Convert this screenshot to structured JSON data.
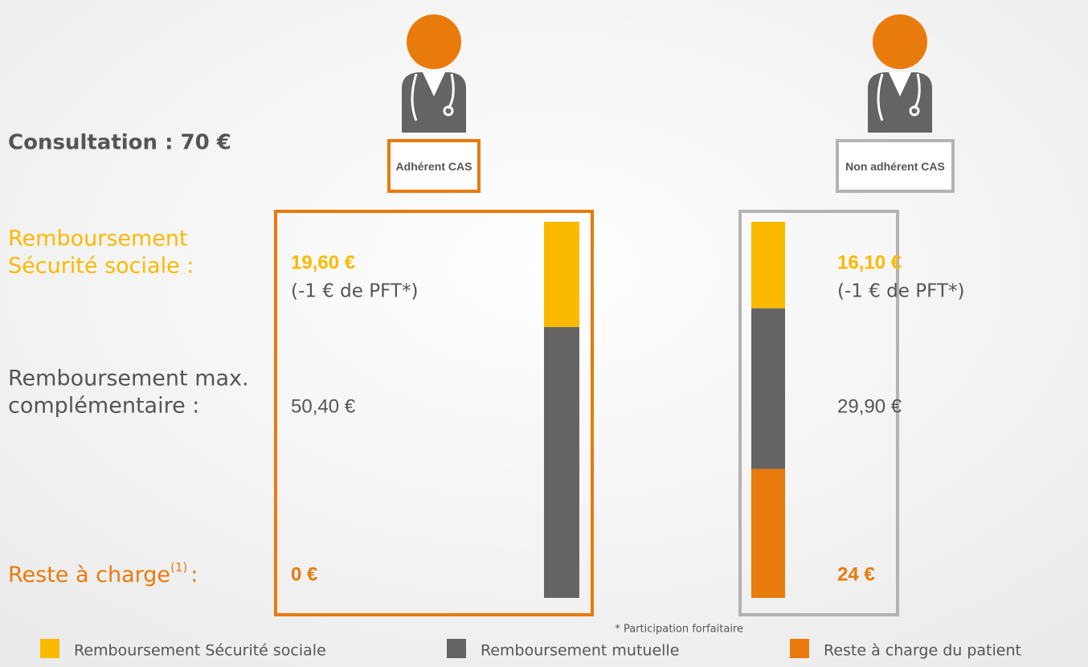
{
  "title": "Consultation : 70 €",
  "row_labels": {
    "ss": [
      "Remboursement",
      "Sécurité sociale :"
    ],
    "complementary": [
      "Remboursement max.",
      "complémentaire :"
    ],
    "remaining": {
      "text": "Reste à charge",
      "sup": "(1)",
      "colon": ":"
    }
  },
  "footnote": "* Participation forfaitaire",
  "chart_data": {
    "type": "stacked-bar",
    "categories": [
      "Adhérent CAS",
      "Non adhérent CAS"
    ],
    "category_colors": [
      "#e97a0c",
      "#b3b3b3"
    ],
    "notes": [
      "(-1 € de PFT*)",
      "(-1 € de PFT*)"
    ],
    "series": [
      {
        "name": "Remboursement Sécurité sociale",
        "color": "#fbb900",
        "values": [
          19.6,
          16.1
        ],
        "value_labels": [
          "19,60 €",
          "16,10 €"
        ]
      },
      {
        "name": "Remboursement mutuelle",
        "color": "#646464",
        "values": [
          50.4,
          29.9
        ],
        "value_labels": [
          "50,40 €",
          "29,90 €"
        ]
      },
      {
        "name": "Reste à charge du patient",
        "color": "#e97a0c",
        "values": [
          0,
          24
        ],
        "value_labels": [
          "0 €",
          "24 €"
        ]
      }
    ]
  }
}
